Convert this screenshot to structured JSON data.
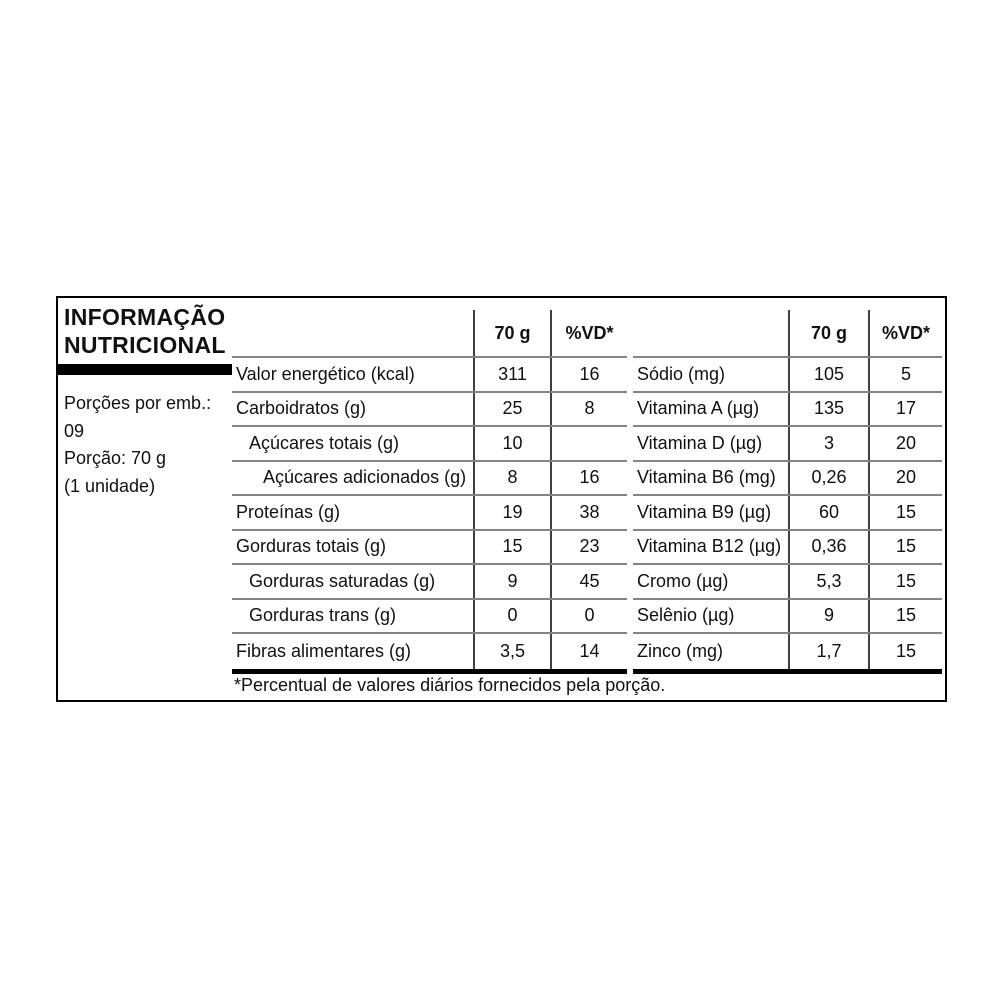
{
  "label": {
    "title": [
      "INFORMAÇÃO",
      "NUTRICIONAL"
    ],
    "meta_lines": [
      "Porções por emb.:",
      "09",
      "Porção: 70 g",
      "(1 unidade)"
    ],
    "footnote": "*Percentual de valores diários fornecidos pela porção.",
    "colors": {
      "background": "#ffffff",
      "text": "#111111",
      "outer_border": "#000000",
      "title_bar": "#000000",
      "row_line": "#848484",
      "column_line": "#3f3f3f",
      "table_bottom_line": "#000000"
    }
  },
  "left_table": {
    "header": {
      "amount": "70 g",
      "dv": "%VD*"
    },
    "rows": [
      {
        "label": "Valor energético (kcal)",
        "amount": "311",
        "dv": "16"
      },
      {
        "label": "Carboidratos (g)",
        "amount": "25",
        "dv": "8"
      },
      {
        "label": "Açúcares totais (g)",
        "amount": "10",
        "dv": ""
      },
      {
        "label": "Açúcares adicionados (g)",
        "amount": "8",
        "dv": "16"
      },
      {
        "label": "Proteínas (g)",
        "amount": "19",
        "dv": "38"
      },
      {
        "label": "Gorduras totais (g)",
        "amount": "15",
        "dv": "23"
      },
      {
        "label": "Gorduras saturadas (g)",
        "amount": "9",
        "dv": "45"
      },
      {
        "label": "Gorduras trans (g)",
        "amount": "0",
        "dv": "0"
      },
      {
        "label": "Fibras alimentares (g)",
        "amount": "3,5",
        "dv": "14"
      }
    ]
  },
  "right_table": {
    "header": {
      "amount": "70 g",
      "dv": "%VD*"
    },
    "rows": [
      {
        "label": "Sódio (mg)",
        "amount": "105",
        "dv": "5"
      },
      {
        "label": "Vitamina A (µg)",
        "amount": "135",
        "dv": "17"
      },
      {
        "label": "Vitamina D (µg)",
        "amount": "3",
        "dv": "20"
      },
      {
        "label": "Vitamina B6 (mg)",
        "amount": "0,26",
        "dv": "20"
      },
      {
        "label": "Vitamina B9 (µg)",
        "amount": "60",
        "dv": "15"
      },
      {
        "label": "Vitamina B12 (µg)",
        "amount": "0,36",
        "dv": "15"
      },
      {
        "label": "Cromo (µg)",
        "amount": "5,3",
        "dv": "15"
      },
      {
        "label": "Selênio (µg)",
        "amount": "9",
        "dv": "15"
      },
      {
        "label": "Zinco (mg)",
        "amount": "1,7",
        "dv": "15"
      }
    ]
  }
}
